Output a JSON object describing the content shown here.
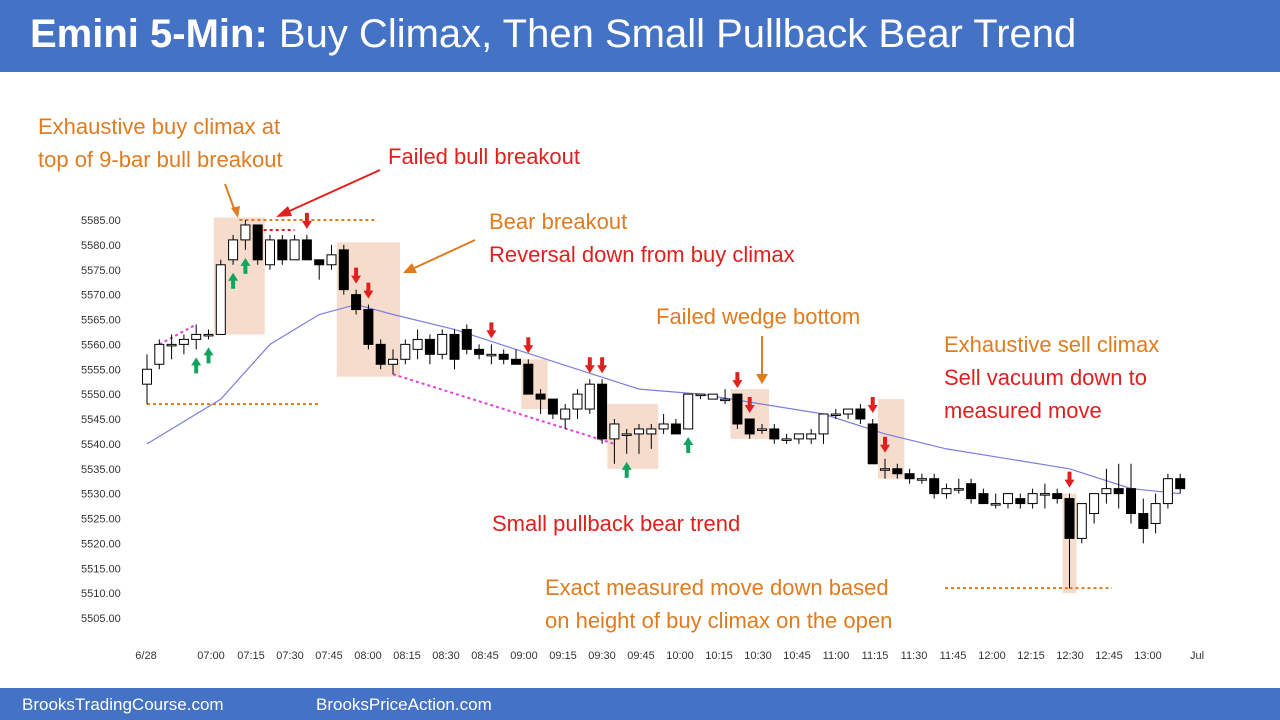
{
  "header": {
    "title_bold": "Emini 5-Min:",
    "title_rest": " Buy Climax, Then Small Pullback Bear Trend"
  },
  "footer": {
    "left": "BrooksTradingCourse.com",
    "right": "BrooksPriceAction.com"
  },
  "colors": {
    "header_bg": "#4472c4",
    "orange": "#e07b1f",
    "red": "#e0201e",
    "green": "#13a361",
    "magenta": "#e040e0",
    "ema": "#7b7fdf",
    "highlight": "#f5dccc"
  },
  "chart_data": {
    "type": "candlestick",
    "title": "Emini 5-Min: Buy Climax, Then Small Pullback Bear Trend",
    "ylim": [
      5505,
      5585
    ],
    "yticks": [
      "5585.00",
      "5580.00",
      "5575.00",
      "5570.00",
      "5565.00",
      "5560.00",
      "5555.00",
      "5550.00",
      "5545.00",
      "5540.00",
      "5535.00",
      "5530.00",
      "5525.00",
      "5520.00",
      "5515.00",
      "5510.00",
      "5505.00"
    ],
    "xticks": [
      "6/28",
      "07:00",
      "07:15",
      "07:30",
      "07:45",
      "08:00",
      "08:15",
      "08:30",
      "08:45",
      "09:00",
      "09:15",
      "09:30",
      "09:45",
      "10:00",
      "10:15",
      "10:30",
      "10:45",
      "11:00",
      "11:15",
      "11:30",
      "11:45",
      "12:00",
      "12:15",
      "12:30",
      "12:45",
      "13:00",
      "Jul"
    ],
    "bars": [
      {
        "o": 5552,
        "h": 5558,
        "l": 5548,
        "c": 5555
      },
      {
        "o": 5556,
        "h": 5561,
        "l": 5555,
        "c": 5560
      },
      {
        "o": 5560,
        "h": 5562,
        "l": 5557,
        "c": 5560
      },
      {
        "o": 5560,
        "h": 5562,
        "l": 5558,
        "c": 5561
      },
      {
        "o": 5561,
        "h": 5564,
        "l": 5559,
        "c": 5562
      },
      {
        "o": 5562,
        "h": 5563,
        "l": 5561,
        "c": 5562
      },
      {
        "o": 5562,
        "h": 5577,
        "l": 5562,
        "c": 5576
      },
      {
        "o": 5577,
        "h": 5582,
        "l": 5576,
        "c": 5581
      },
      {
        "o": 5581,
        "h": 5585,
        "l": 5579,
        "c": 5584
      },
      {
        "o": 5584,
        "h": 5584,
        "l": 5576,
        "c": 5577
      },
      {
        "o": 5576,
        "h": 5582,
        "l": 5575,
        "c": 5581
      },
      {
        "o": 5581,
        "h": 5582,
        "l": 5576,
        "c": 5577
      },
      {
        "o": 5577,
        "h": 5582,
        "l": 5577,
        "c": 5581
      },
      {
        "o": 5581,
        "h": 5582,
        "l": 5577,
        "c": 5577
      },
      {
        "o": 5577,
        "h": 5577,
        "l": 5573,
        "c": 5576
      },
      {
        "o": 5576,
        "h": 5580,
        "l": 5575,
        "c": 5578
      },
      {
        "o": 5579,
        "h": 5580,
        "l": 5570,
        "c": 5571
      },
      {
        "o": 5570,
        "h": 5571,
        "l": 5566,
        "c": 5567
      },
      {
        "o": 5567,
        "h": 5568,
        "l": 5559,
        "c": 5560
      },
      {
        "o": 5560,
        "h": 5561,
        "l": 5555,
        "c": 5556
      },
      {
        "o": 5556,
        "h": 5559,
        "l": 5554,
        "c": 5557
      },
      {
        "o": 5557,
        "h": 5561,
        "l": 5556,
        "c": 5560
      },
      {
        "o": 5559,
        "h": 5563,
        "l": 5557,
        "c": 5561
      },
      {
        "o": 5561,
        "h": 5562,
        "l": 5556,
        "c": 5558
      },
      {
        "o": 5558,
        "h": 5563,
        "l": 5557,
        "c": 5562
      },
      {
        "o": 5562,
        "h": 5563,
        "l": 5555,
        "c": 5557
      },
      {
        "o": 5563,
        "h": 5564,
        "l": 5558,
        "c": 5559
      },
      {
        "o": 5559,
        "h": 5560,
        "l": 5557,
        "c": 5558
      },
      {
        "o": 5558,
        "h": 5560,
        "l": 5556,
        "c": 5558
      },
      {
        "o": 5558,
        "h": 5559,
        "l": 5556,
        "c": 5557
      },
      {
        "o": 5557,
        "h": 5559,
        "l": 5556,
        "c": 5556
      },
      {
        "o": 5556,
        "h": 5557,
        "l": 5550,
        "c": 5550
      },
      {
        "o": 5550,
        "h": 5551,
        "l": 5546,
        "c": 5549
      },
      {
        "o": 5549,
        "h": 5549,
        "l": 5545,
        "c": 5546
      },
      {
        "o": 5545,
        "h": 5548,
        "l": 5543,
        "c": 5547
      },
      {
        "o": 5547,
        "h": 5551,
        "l": 5545,
        "c": 5550
      },
      {
        "o": 5547,
        "h": 5553,
        "l": 5546,
        "c": 5552
      },
      {
        "o": 5552,
        "h": 5553,
        "l": 5540,
        "c": 5541
      },
      {
        "o": 5541,
        "h": 5545,
        "l": 5536,
        "c": 5544
      },
      {
        "o": 5542,
        "h": 5543,
        "l": 5538,
        "c": 5542
      },
      {
        "o": 5542,
        "h": 5544,
        "l": 5538,
        "c": 5543
      },
      {
        "o": 5542,
        "h": 5544,
        "l": 5539,
        "c": 5543
      },
      {
        "o": 5543,
        "h": 5546,
        "l": 5542,
        "c": 5544
      },
      {
        "o": 5544,
        "h": 5545,
        "l": 5542,
        "c": 5542
      },
      {
        "o": 5543,
        "h": 5550,
        "l": 5543,
        "c": 5550
      },
      {
        "o": 5550,
        "h": 5550,
        "l": 5549,
        "c": 5550
      },
      {
        "o": 5549,
        "h": 5550,
        "l": 5549,
        "c": 5550
      },
      {
        "o": 5549,
        "h": 5551,
        "l": 5548,
        "c": 5549
      },
      {
        "o": 5550,
        "h": 5550,
        "l": 5543,
        "c": 5544
      },
      {
        "o": 5545,
        "h": 5545,
        "l": 5541,
        "c": 5542
      },
      {
        "o": 5543,
        "h": 5544,
        "l": 5542,
        "c": 5543
      },
      {
        "o": 5543,
        "h": 5544,
        "l": 5540,
        "c": 5541
      },
      {
        "o": 5541,
        "h": 5542,
        "l": 5540,
        "c": 5541
      },
      {
        "o": 5541,
        "h": 5542,
        "l": 5540,
        "c": 5542
      },
      {
        "o": 5541,
        "h": 5543,
        "l": 5540,
        "c": 5542
      },
      {
        "o": 5542,
        "h": 5546,
        "l": 5540,
        "c": 5546
      },
      {
        "o": 5546,
        "h": 5547,
        "l": 5545,
        "c": 5546
      },
      {
        "o": 5546,
        "h": 5547,
        "l": 5545,
        "c": 5547
      },
      {
        "o": 5547,
        "h": 5548,
        "l": 5544,
        "c": 5545
      },
      {
        "o": 5544,
        "h": 5545,
        "l": 5536,
        "c": 5536
      },
      {
        "o": 5535,
        "h": 5537,
        "l": 5533,
        "c": 5535
      },
      {
        "o": 5535,
        "h": 5536,
        "l": 5533,
        "c": 5534
      },
      {
        "o": 5534,
        "h": 5535,
        "l": 5532,
        "c": 5533
      },
      {
        "o": 5533,
        "h": 5534,
        "l": 5532,
        "c": 5533
      },
      {
        "o": 5533,
        "h": 5534,
        "l": 5529,
        "c": 5530
      },
      {
        "o": 5530,
        "h": 5532,
        "l": 5529,
        "c": 5531
      },
      {
        "o": 5531,
        "h": 5533,
        "l": 5530,
        "c": 5531
      },
      {
        "o": 5532,
        "h": 5533,
        "l": 5528,
        "c": 5529
      },
      {
        "o": 5530,
        "h": 5531,
        "l": 5528,
        "c": 5528
      },
      {
        "o": 5528,
        "h": 5530,
        "l": 5527,
        "c": 5528
      },
      {
        "o": 5528,
        "h": 5530,
        "l": 5527,
        "c": 5530
      },
      {
        "o": 5529,
        "h": 5530,
        "l": 5527,
        "c": 5528
      },
      {
        "o": 5528,
        "h": 5531,
        "l": 5527,
        "c": 5530
      },
      {
        "o": 5530,
        "h": 5532,
        "l": 5527,
        "c": 5530
      },
      {
        "o": 5530,
        "h": 5531,
        "l": 5528,
        "c": 5529
      },
      {
        "o": 5529,
        "h": 5530,
        "l": 5511,
        "c": 5521
      },
      {
        "o": 5521,
        "h": 5528,
        "l": 5520,
        "c": 5528
      },
      {
        "o": 5526,
        "h": 5530,
        "l": 5524,
        "c": 5530
      },
      {
        "o": 5530,
        "h": 5535,
        "l": 5528,
        "c": 5531
      },
      {
        "o": 5531,
        "h": 5536,
        "l": 5527,
        "c": 5530
      },
      {
        "o": 5531,
        "h": 5536,
        "l": 5524,
        "c": 5526
      },
      {
        "o": 5526,
        "h": 5529,
        "l": 5520,
        "c": 5523
      },
      {
        "o": 5524,
        "h": 5530,
        "l": 5522,
        "c": 5528
      },
      {
        "o": 5528,
        "h": 5534,
        "l": 5527,
        "c": 5533
      },
      {
        "o": 5533,
        "h": 5534,
        "l": 5530,
        "c": 5531
      }
    ],
    "ema": [
      {
        "i": 0,
        "v": 5540
      },
      {
        "i": 6,
        "v": 5549
      },
      {
        "i": 10,
        "v": 5560
      },
      {
        "i": 14,
        "v": 5566
      },
      {
        "i": 17,
        "v": 5568
      },
      {
        "i": 20,
        "v": 5566
      },
      {
        "i": 25,
        "v": 5563
      },
      {
        "i": 30,
        "v": 5559
      },
      {
        "i": 35,
        "v": 5555
      },
      {
        "i": 40,
        "v": 5551
      },
      {
        "i": 45,
        "v": 5550
      },
      {
        "i": 50,
        "v": 5548
      },
      {
        "i": 55,
        "v": 5546
      },
      {
        "i": 60,
        "v": 5542
      },
      {
        "i": 65,
        "v": 5539
      },
      {
        "i": 70,
        "v": 5537
      },
      {
        "i": 75,
        "v": 5535
      },
      {
        "i": 80,
        "v": 5531
      },
      {
        "i": 84,
        "v": 5530
      }
    ],
    "annotations": [
      {
        "id": "buy-climax",
        "lines": [
          "Exhaustive buy climax at",
          "top of 9-bar bull breakout"
        ],
        "color": "orange"
      },
      {
        "id": "failed-bull",
        "lines": [
          "Failed bull breakout"
        ],
        "color": "red"
      },
      {
        "id": "bear-breakout",
        "lines": [
          "Bear breakout"
        ],
        "color": "orange"
      },
      {
        "id": "reversal-down",
        "lines": [
          "Reversal down from buy climax"
        ],
        "color": "red"
      },
      {
        "id": "failed-wedge",
        "lines": [
          "Failed wedge bottom"
        ],
        "color": "orange"
      },
      {
        "id": "sell-climax",
        "lines": [
          "Exhaustive sell climax"
        ],
        "color": "orange"
      },
      {
        "id": "sell-vacuum",
        "lines": [
          "Sell vacuum down to",
          "measured move"
        ],
        "color": "red"
      },
      {
        "id": "small-pb",
        "lines": [
          "Small pullback bear trend"
        ],
        "color": "red"
      },
      {
        "id": "measured-move",
        "lines": [
          "Exact measured move down based",
          "on height of buy climax on the open"
        ],
        "color": "orange"
      }
    ],
    "up_arrows": [
      4,
      5,
      7,
      8,
      39,
      44
    ],
    "down_arrows": [
      13,
      17,
      18,
      28,
      31,
      36,
      37,
      48,
      49,
      59,
      60,
      75
    ]
  }
}
